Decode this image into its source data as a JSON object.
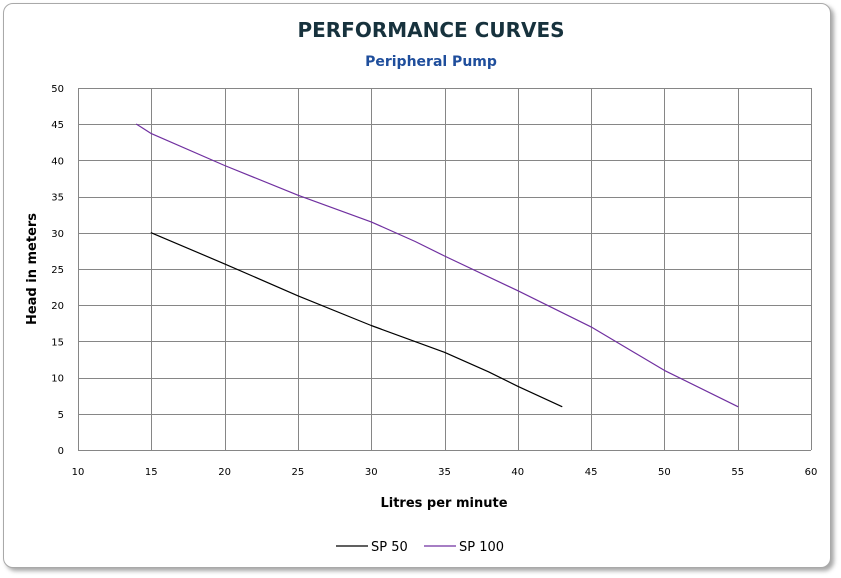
{
  "chart_data": {
    "type": "line",
    "title": "PERFORMANCE CURVES",
    "subtitle": "Peripheral Pump",
    "xlabel": "Litres per minute",
    "ylabel": "Head in meters",
    "xlim": [
      10,
      60
    ],
    "ylim": [
      0,
      50
    ],
    "x_ticks": [
      10,
      15,
      20,
      25,
      30,
      35,
      40,
      45,
      50,
      55,
      60
    ],
    "y_ticks": [
      0,
      5,
      10,
      15,
      20,
      25,
      30,
      35,
      40,
      45,
      50
    ],
    "grid": true,
    "legend_position": "bottom",
    "series": [
      {
        "name": "SP 50",
        "color": "#000000",
        "points": [
          [
            15,
            30
          ],
          [
            20,
            25.7
          ],
          [
            25,
            21.3
          ],
          [
            30,
            17.2
          ],
          [
            35,
            13.5
          ],
          [
            38,
            10.8
          ],
          [
            40,
            8.8
          ],
          [
            43,
            6
          ]
        ]
      },
      {
        "name": "SP 100",
        "color": "#7030a0",
        "points": [
          [
            14,
            45
          ],
          [
            15,
            43.7
          ],
          [
            20,
            39.3
          ],
          [
            25,
            35.2
          ],
          [
            30,
            31.5
          ],
          [
            33,
            28.8
          ],
          [
            35,
            26.8
          ],
          [
            40,
            22
          ],
          [
            45,
            17
          ],
          [
            50,
            11
          ],
          [
            55,
            6
          ]
        ]
      }
    ]
  }
}
